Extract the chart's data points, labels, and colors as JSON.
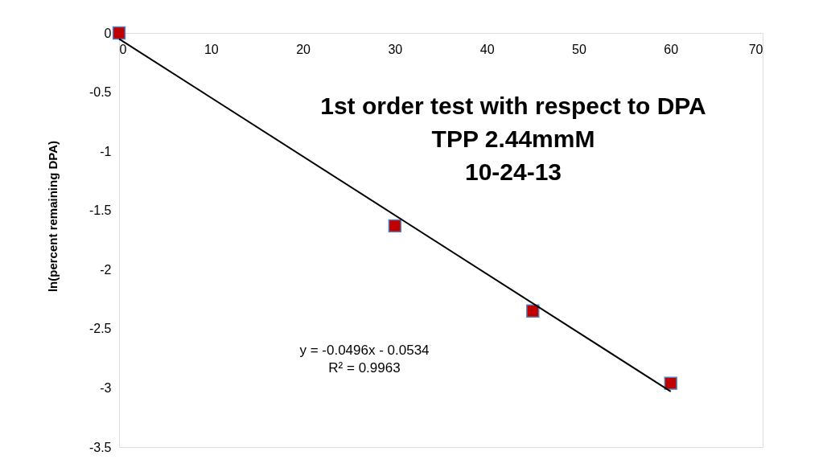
{
  "chart_data": {
    "type": "scatter",
    "title": "1st order test with respect to DPA\nTPP 2.44mmM\n10-24-13",
    "ylabel": "ln(percent remaining DPA)",
    "xlim": [
      0,
      70
    ],
    "xticks": [
      0,
      10,
      20,
      30,
      40,
      50,
      60,
      70
    ],
    "ylim": [
      -3.5,
      0
    ],
    "yticks": [
      0,
      -0.5,
      -1,
      -1.5,
      -2,
      -2.5,
      -3,
      -3.5
    ],
    "series": [
      {
        "color": "#c00000",
        "marker": "square",
        "x": [
          0,
          30,
          45,
          60
        ],
        "values": [
          0,
          -1.63,
          -2.35,
          -2.96
        ]
      },
      {
        "type": "line",
        "marker": "none",
        "color": "#000000",
        "x": [
          0,
          60
        ],
        "values": [
          -0.05,
          -3.03
        ]
      }
    ],
    "annotations": [
      "y = -0.0496x - 0.0534",
      "R² = 0.9963"
    ]
  }
}
